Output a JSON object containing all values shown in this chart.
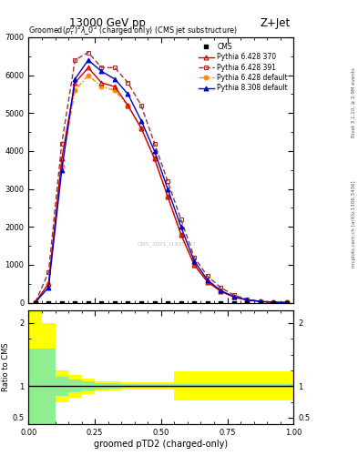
{
  "title_top": "13000 GeV pp",
  "title_right": "Z+Jet",
  "plot_title": "Groomed$(p_T^D)^2\\lambda\\_0^2$ (charged only) (CMS jet substructure)",
  "xlabel": "groomed pTD2 (charged-only)",
  "ylabel_ratio": "Ratio to CMS",
  "rivet_label": "Rivet 3.1.10, ≥ 2.9M events",
  "mcplots_label": "mcplots.cern.ch [arXiv:1306.3436]",
  "cms_label": "CMS_2021_I1920187",
  "x_edges": [
    0.0,
    0.05,
    0.1,
    0.15,
    0.2,
    0.25,
    0.3,
    0.35,
    0.4,
    0.45,
    0.5,
    0.55,
    0.6,
    0.65,
    0.7,
    0.75,
    0.8,
    0.85,
    0.9,
    0.95,
    1.0
  ],
  "x_centers": [
    0.025,
    0.075,
    0.125,
    0.175,
    0.225,
    0.275,
    0.325,
    0.375,
    0.425,
    0.475,
    0.525,
    0.575,
    0.625,
    0.675,
    0.725,
    0.775,
    0.825,
    0.875,
    0.925,
    0.975
  ],
  "py6_370_y": [
    10,
    500,
    3800,
    5800,
    6200,
    5800,
    5700,
    5200,
    4600,
    3800,
    2800,
    1800,
    1000,
    550,
    300,
    150,
    70,
    30,
    10,
    5
  ],
  "py6_391_y": [
    10,
    800,
    4200,
    6400,
    6600,
    6200,
    6200,
    5800,
    5200,
    4200,
    3200,
    2200,
    1200,
    700,
    400,
    200,
    90,
    40,
    15,
    5
  ],
  "py6_def_y": [
    10,
    500,
    3600,
    5600,
    6000,
    5700,
    5600,
    5200,
    4600,
    3800,
    2800,
    1800,
    1000,
    550,
    300,
    150,
    70,
    30,
    10,
    5
  ],
  "py8_def_y": [
    10,
    400,
    3500,
    5900,
    6400,
    6100,
    5900,
    5500,
    4800,
    4000,
    3000,
    2000,
    1100,
    600,
    320,
    160,
    75,
    35,
    12,
    5
  ],
  "cms_y": [
    0,
    0,
    0,
    0,
    0,
    0,
    0,
    0,
    0,
    0,
    0,
    0,
    0,
    0,
    0,
    0,
    0,
    0,
    0,
    0
  ],
  "colors": {
    "py6_370": "#cc0000",
    "py6_391": "#993333",
    "py6_def": "#ff8c00",
    "py8_def": "#0000cc"
  },
  "ratio_x_edges": [
    0.0,
    0.05,
    0.1,
    0.15,
    0.2,
    0.25,
    0.3,
    0.35,
    0.4,
    0.45,
    0.5,
    0.55,
    0.6,
    0.65,
    0.7,
    0.75,
    0.8,
    0.85,
    0.9,
    0.95,
    1.0
  ],
  "ratio_green_lo": [
    0.4,
    0.4,
    0.85,
    0.9,
    0.93,
    0.95,
    0.96,
    0.97,
    0.97,
    0.97,
    0.97,
    0.97,
    0.97,
    0.97,
    0.97,
    0.97,
    0.97,
    0.97,
    0.97,
    0.97
  ],
  "ratio_green_hi": [
    1.6,
    1.6,
    1.15,
    1.1,
    1.07,
    1.05,
    1.04,
    1.03,
    1.03,
    1.03,
    1.03,
    1.03,
    1.03,
    1.03,
    1.03,
    1.03,
    1.03,
    1.03,
    1.03,
    1.03
  ],
  "ratio_yellow_lo": [
    0.4,
    0.4,
    0.75,
    0.82,
    0.88,
    0.92,
    0.93,
    0.94,
    0.94,
    0.94,
    0.94,
    0.77,
    0.77,
    0.77,
    0.77,
    0.77,
    0.77,
    0.77,
    0.77,
    0.77
  ],
  "ratio_yellow_hi": [
    2.3,
    2.0,
    1.25,
    1.18,
    1.12,
    1.08,
    1.07,
    1.06,
    1.06,
    1.06,
    1.06,
    1.23,
    1.23,
    1.23,
    1.23,
    1.23,
    1.23,
    1.23,
    1.23,
    1.23
  ],
  "xlim": [
    0.0,
    1.0
  ],
  "ylim_main": [
    0,
    7000
  ],
  "ylim_ratio": [
    0.4,
    2.2
  ],
  "yticks_main": [
    0,
    1000,
    2000,
    3000,
    4000,
    5000,
    6000,
    7000
  ],
  "yticks_ratio": [
    0.5,
    1.0,
    2.0
  ]
}
